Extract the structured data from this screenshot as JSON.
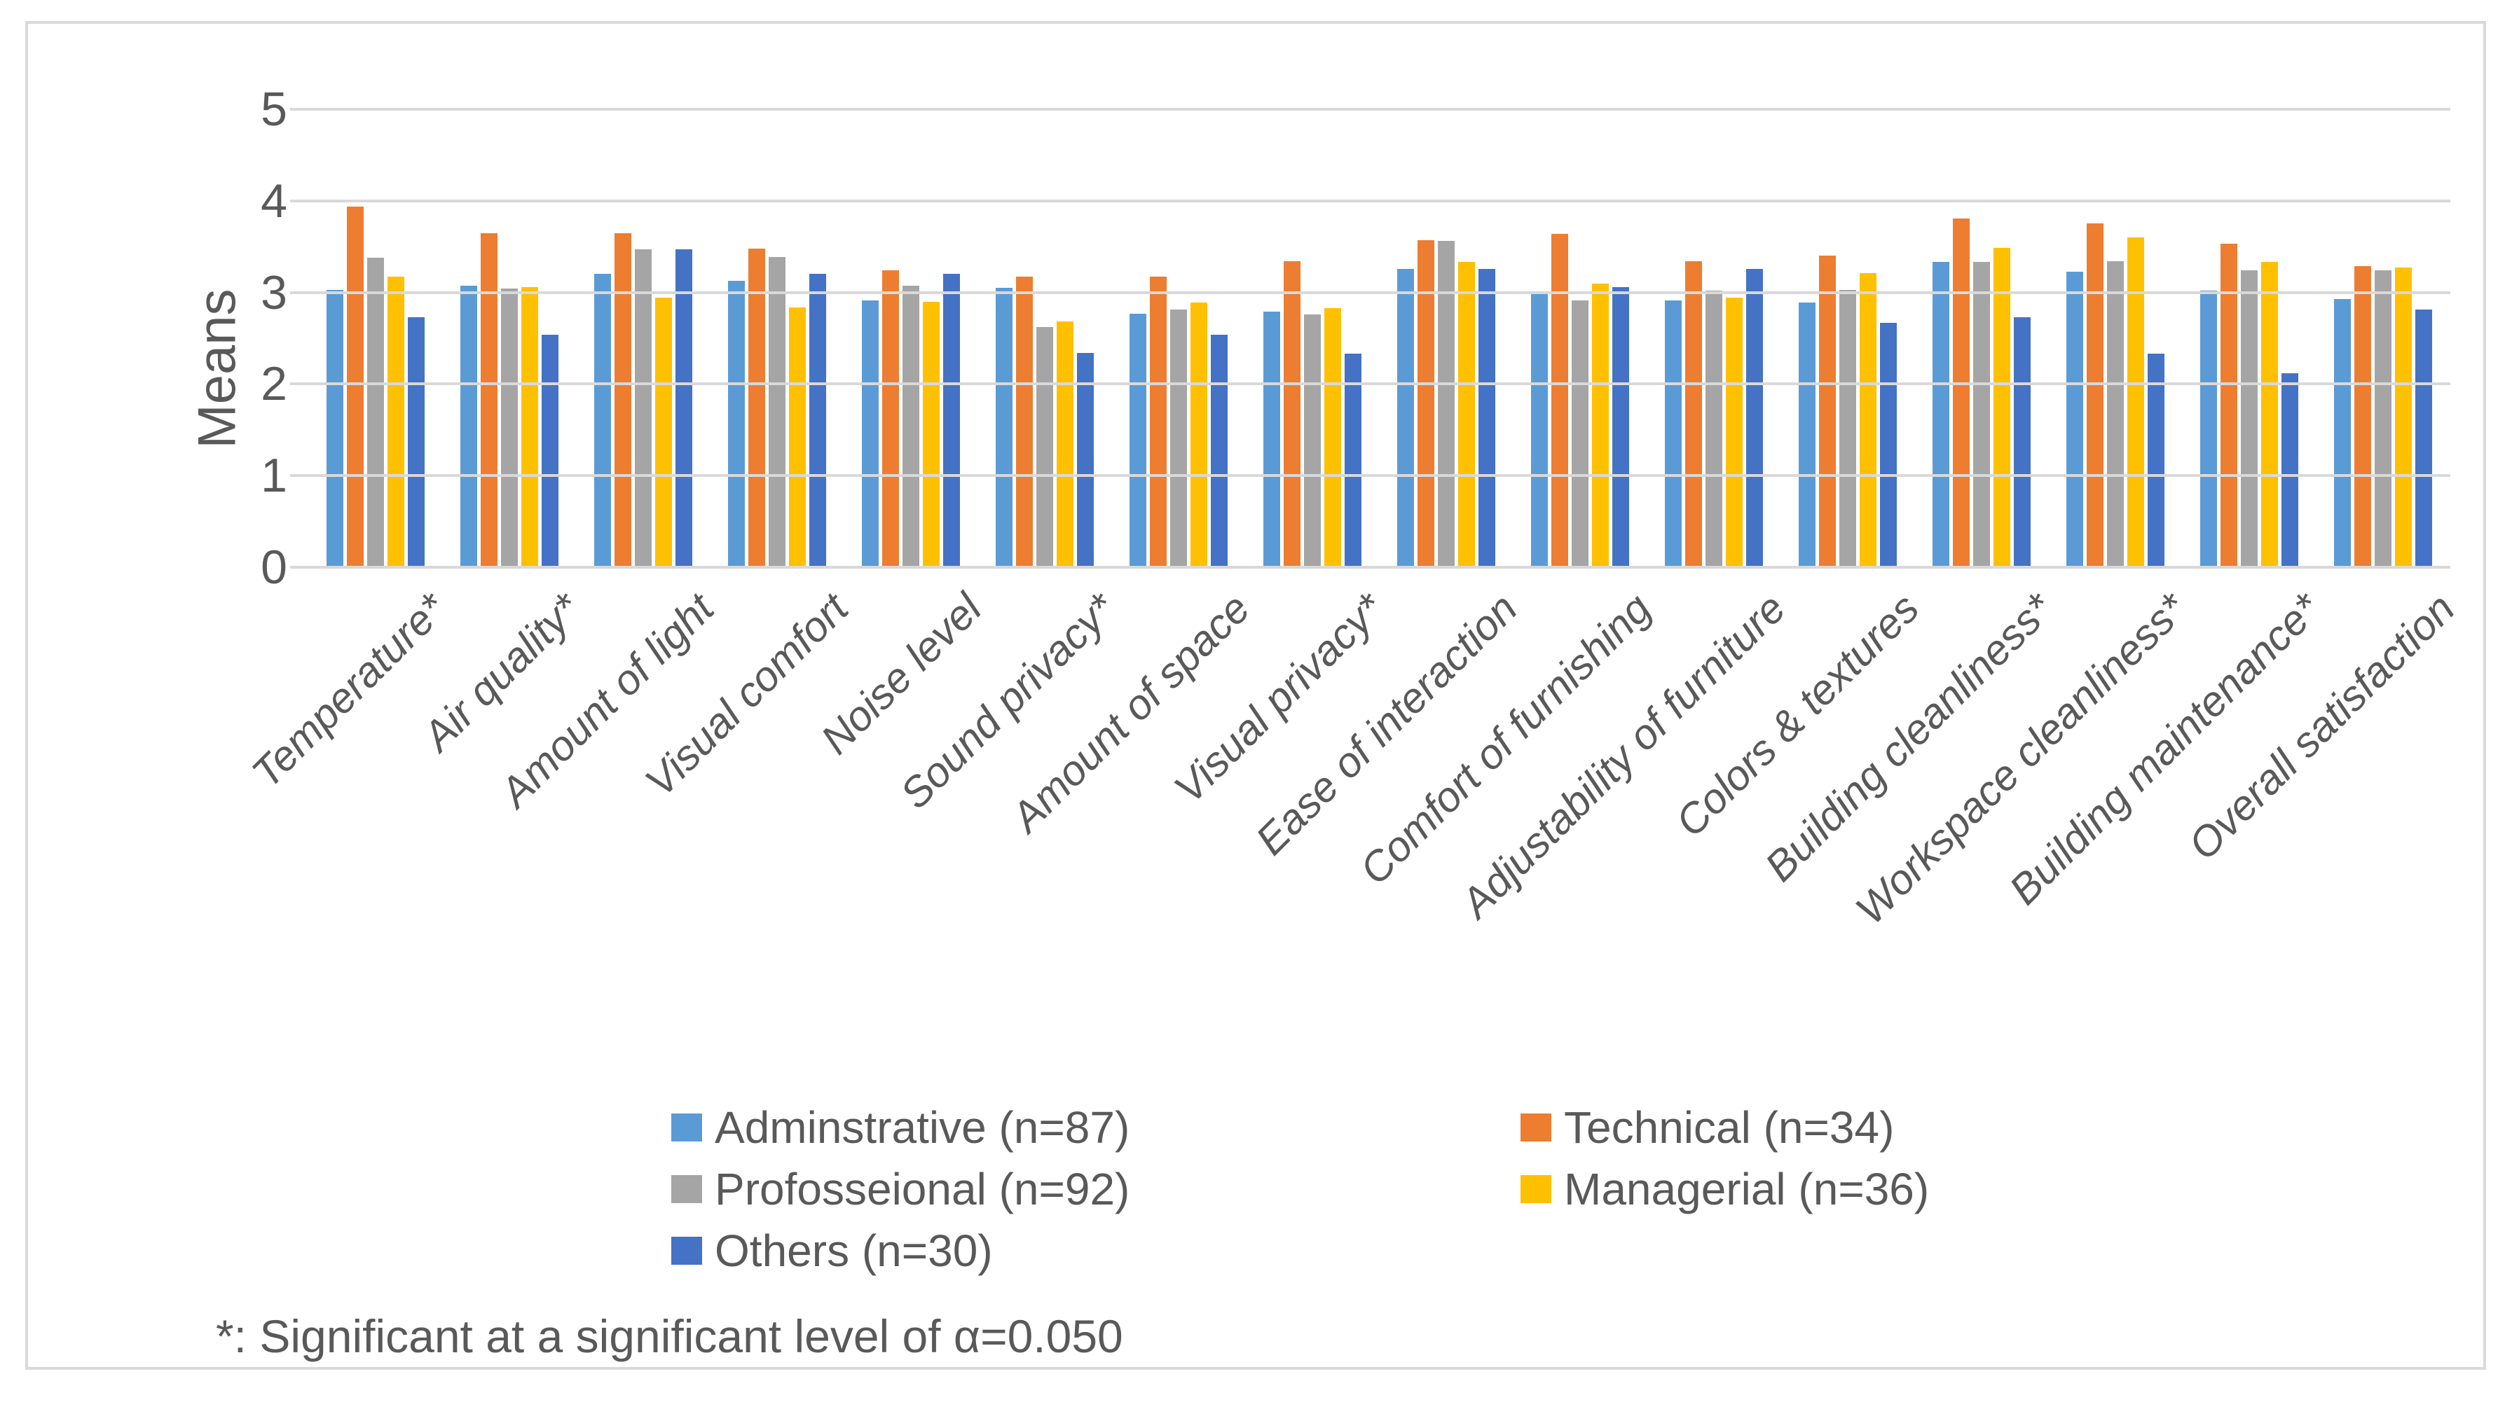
{
  "chart_data": {
    "type": "bar",
    "title": "",
    "ylabel": "Means",
    "xlabel": "",
    "ylim": [
      0,
      5
    ],
    "yticks": [
      0,
      1,
      2,
      3,
      4,
      5
    ],
    "grid": true,
    "legend_position": "bottom",
    "categories": [
      "Temperature*",
      "Air quality*",
      "Amount of light",
      "Visual comfort",
      "Noise level",
      "Sound privacy*",
      "Amount of space",
      "Visual privacy*",
      "Ease of interaction",
      "Comfort of furnishing",
      "Adjustability of furniture",
      "Colors & textures",
      "Building cleanliness*",
      "Workspace cleanliness*",
      "Building maintenance*",
      "Overall satisfaction"
    ],
    "series": [
      {
        "name": "Adminstrative (n=87)",
        "color": "#5B9BD5",
        "values": [
          3.03,
          3.07,
          3.2,
          3.13,
          2.91,
          3.05,
          2.77,
          2.79,
          3.26,
          2.99,
          2.91,
          2.89,
          3.33,
          3.23,
          3.02,
          2.93
        ]
      },
      {
        "name": "Technical (n=34)",
        "color": "#ED7D31",
        "values": [
          3.94,
          3.65,
          3.65,
          3.48,
          3.24,
          3.17,
          3.17,
          3.34,
          3.57,
          3.64,
          3.34,
          3.4,
          3.81,
          3.75,
          3.53,
          3.29
        ]
      },
      {
        "name": "Profosseional (n=92)",
        "color": "#A5A5A5",
        "values": [
          3.38,
          3.04,
          3.47,
          3.39,
          3.07,
          2.62,
          2.81,
          2.76,
          3.56,
          2.91,
          3.02,
          3.03,
          3.33,
          3.34,
          3.24,
          3.24
        ]
      },
      {
        "name": "Managerial (n=36)",
        "color": "#FFC000",
        "values": [
          3.17,
          3.06,
          2.94,
          2.84,
          2.9,
          2.68,
          2.89,
          2.83,
          3.33,
          3.1,
          2.94,
          3.21,
          3.49,
          3.6,
          3.33,
          3.27
        ]
      },
      {
        "name": "Others (n=30)",
        "color": "#4472C4",
        "values": [
          2.73,
          2.54,
          3.47,
          3.2,
          3.2,
          2.34,
          2.54,
          2.33,
          3.26,
          3.06,
          3.26,
          2.67,
          2.73,
          2.33,
          2.12,
          2.81
        ]
      }
    ],
    "footnote": "*: Significant at a significant level of α=0.050"
  },
  "legend": {
    "columns": [
      [
        0,
        2,
        4
      ],
      [
        1,
        3
      ]
    ]
  },
  "colors": {
    "text": "#595959",
    "gridline": "#D9D9D9",
    "frame_border": "#D9D9D9",
    "background": "#FFFFFF"
  }
}
